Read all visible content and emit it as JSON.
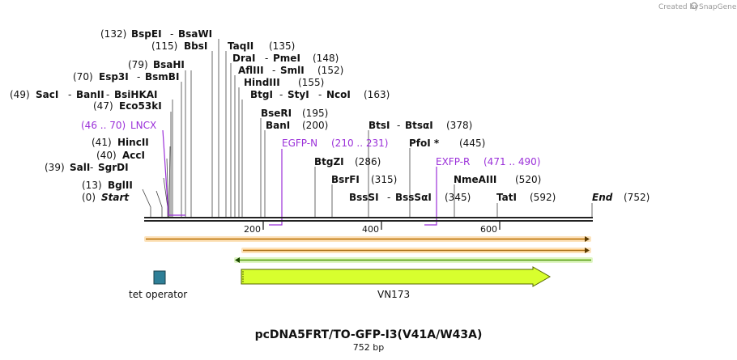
{
  "credit": {
    "prefix": "Created by",
    "brand": "SnapGene"
  },
  "title": "pcDNA5FRT/TO-GFP-I3(V41A/W43A)",
  "length_label": "752 bp",
  "ticks": [
    "200",
    "400",
    "600"
  ],
  "colors": {
    "purple": "#9b30d9",
    "orange": "#f0a030",
    "green": "#8ed83a",
    "teal": "#2e7f97",
    "vn173": "#d8ff2e",
    "backbone": "#222222"
  },
  "sites": [
    {
      "pos": "(132)",
      "name": "BspEI",
      "name2": "BsaWI"
    },
    {
      "pos": "(115)",
      "name": "BbsI"
    },
    {
      "pos": "(79)",
      "name": "BsaHI"
    },
    {
      "pos": "(70)",
      "name": "Esp3I",
      "name2": "BsmBI"
    },
    {
      "pos": "(49)",
      "name": "SacI",
      "name2": "BanII",
      "name3": "BsiHKAI"
    },
    {
      "pos": "(47)",
      "name": "Eco53kI"
    },
    {
      "pos": "(41)",
      "name": "HincII"
    },
    {
      "pos": "(40)",
      "name": "AccI"
    },
    {
      "pos": "(39)",
      "name": "SalI",
      "name2": "SgrDI"
    },
    {
      "pos": "(13)",
      "name": "BglII"
    },
    {
      "pos": "(0)",
      "name": "Start"
    },
    {
      "pos": "(135)",
      "name": "TaqII"
    },
    {
      "pos": "(148)",
      "name": "DraI",
      "name2": "PmeI"
    },
    {
      "pos": "(152)",
      "name": "AflIII",
      "name2": "SmlI"
    },
    {
      "pos": "(155)",
      "name": "HindIII"
    },
    {
      "pos": "(163)",
      "name": "BtgI",
      "name2": "StyI",
      "name3": "NcoI"
    },
    {
      "pos": "(195)",
      "name": "BseRI"
    },
    {
      "pos": "(200)",
      "name": "BanI"
    },
    {
      "pos": "(286)",
      "name": "BtgZI"
    },
    {
      "pos": "(315)",
      "name": "BsrFI"
    },
    {
      "pos": "(345)",
      "name": "BssSI",
      "name2": "BssSαI"
    },
    {
      "pos": "(378)",
      "name": "BtsI",
      "name2": "BtsαI"
    },
    {
      "pos": "(445)",
      "name": "PfoI *"
    },
    {
      "pos": "(520)",
      "name": "NmeAIII"
    },
    {
      "pos": "(592)",
      "name": "TatI"
    },
    {
      "pos": "(752)",
      "name": "End"
    }
  ],
  "primers": [
    {
      "name": "LNCX",
      "range": "(46 .. 70)"
    },
    {
      "name": "EGFP-N",
      "range": "(210 .. 231)"
    },
    {
      "name": "EXFP-R",
      "range": "(471 .. 490)"
    }
  ],
  "features": {
    "operator": "tet operator",
    "vn173": "VN173"
  }
}
